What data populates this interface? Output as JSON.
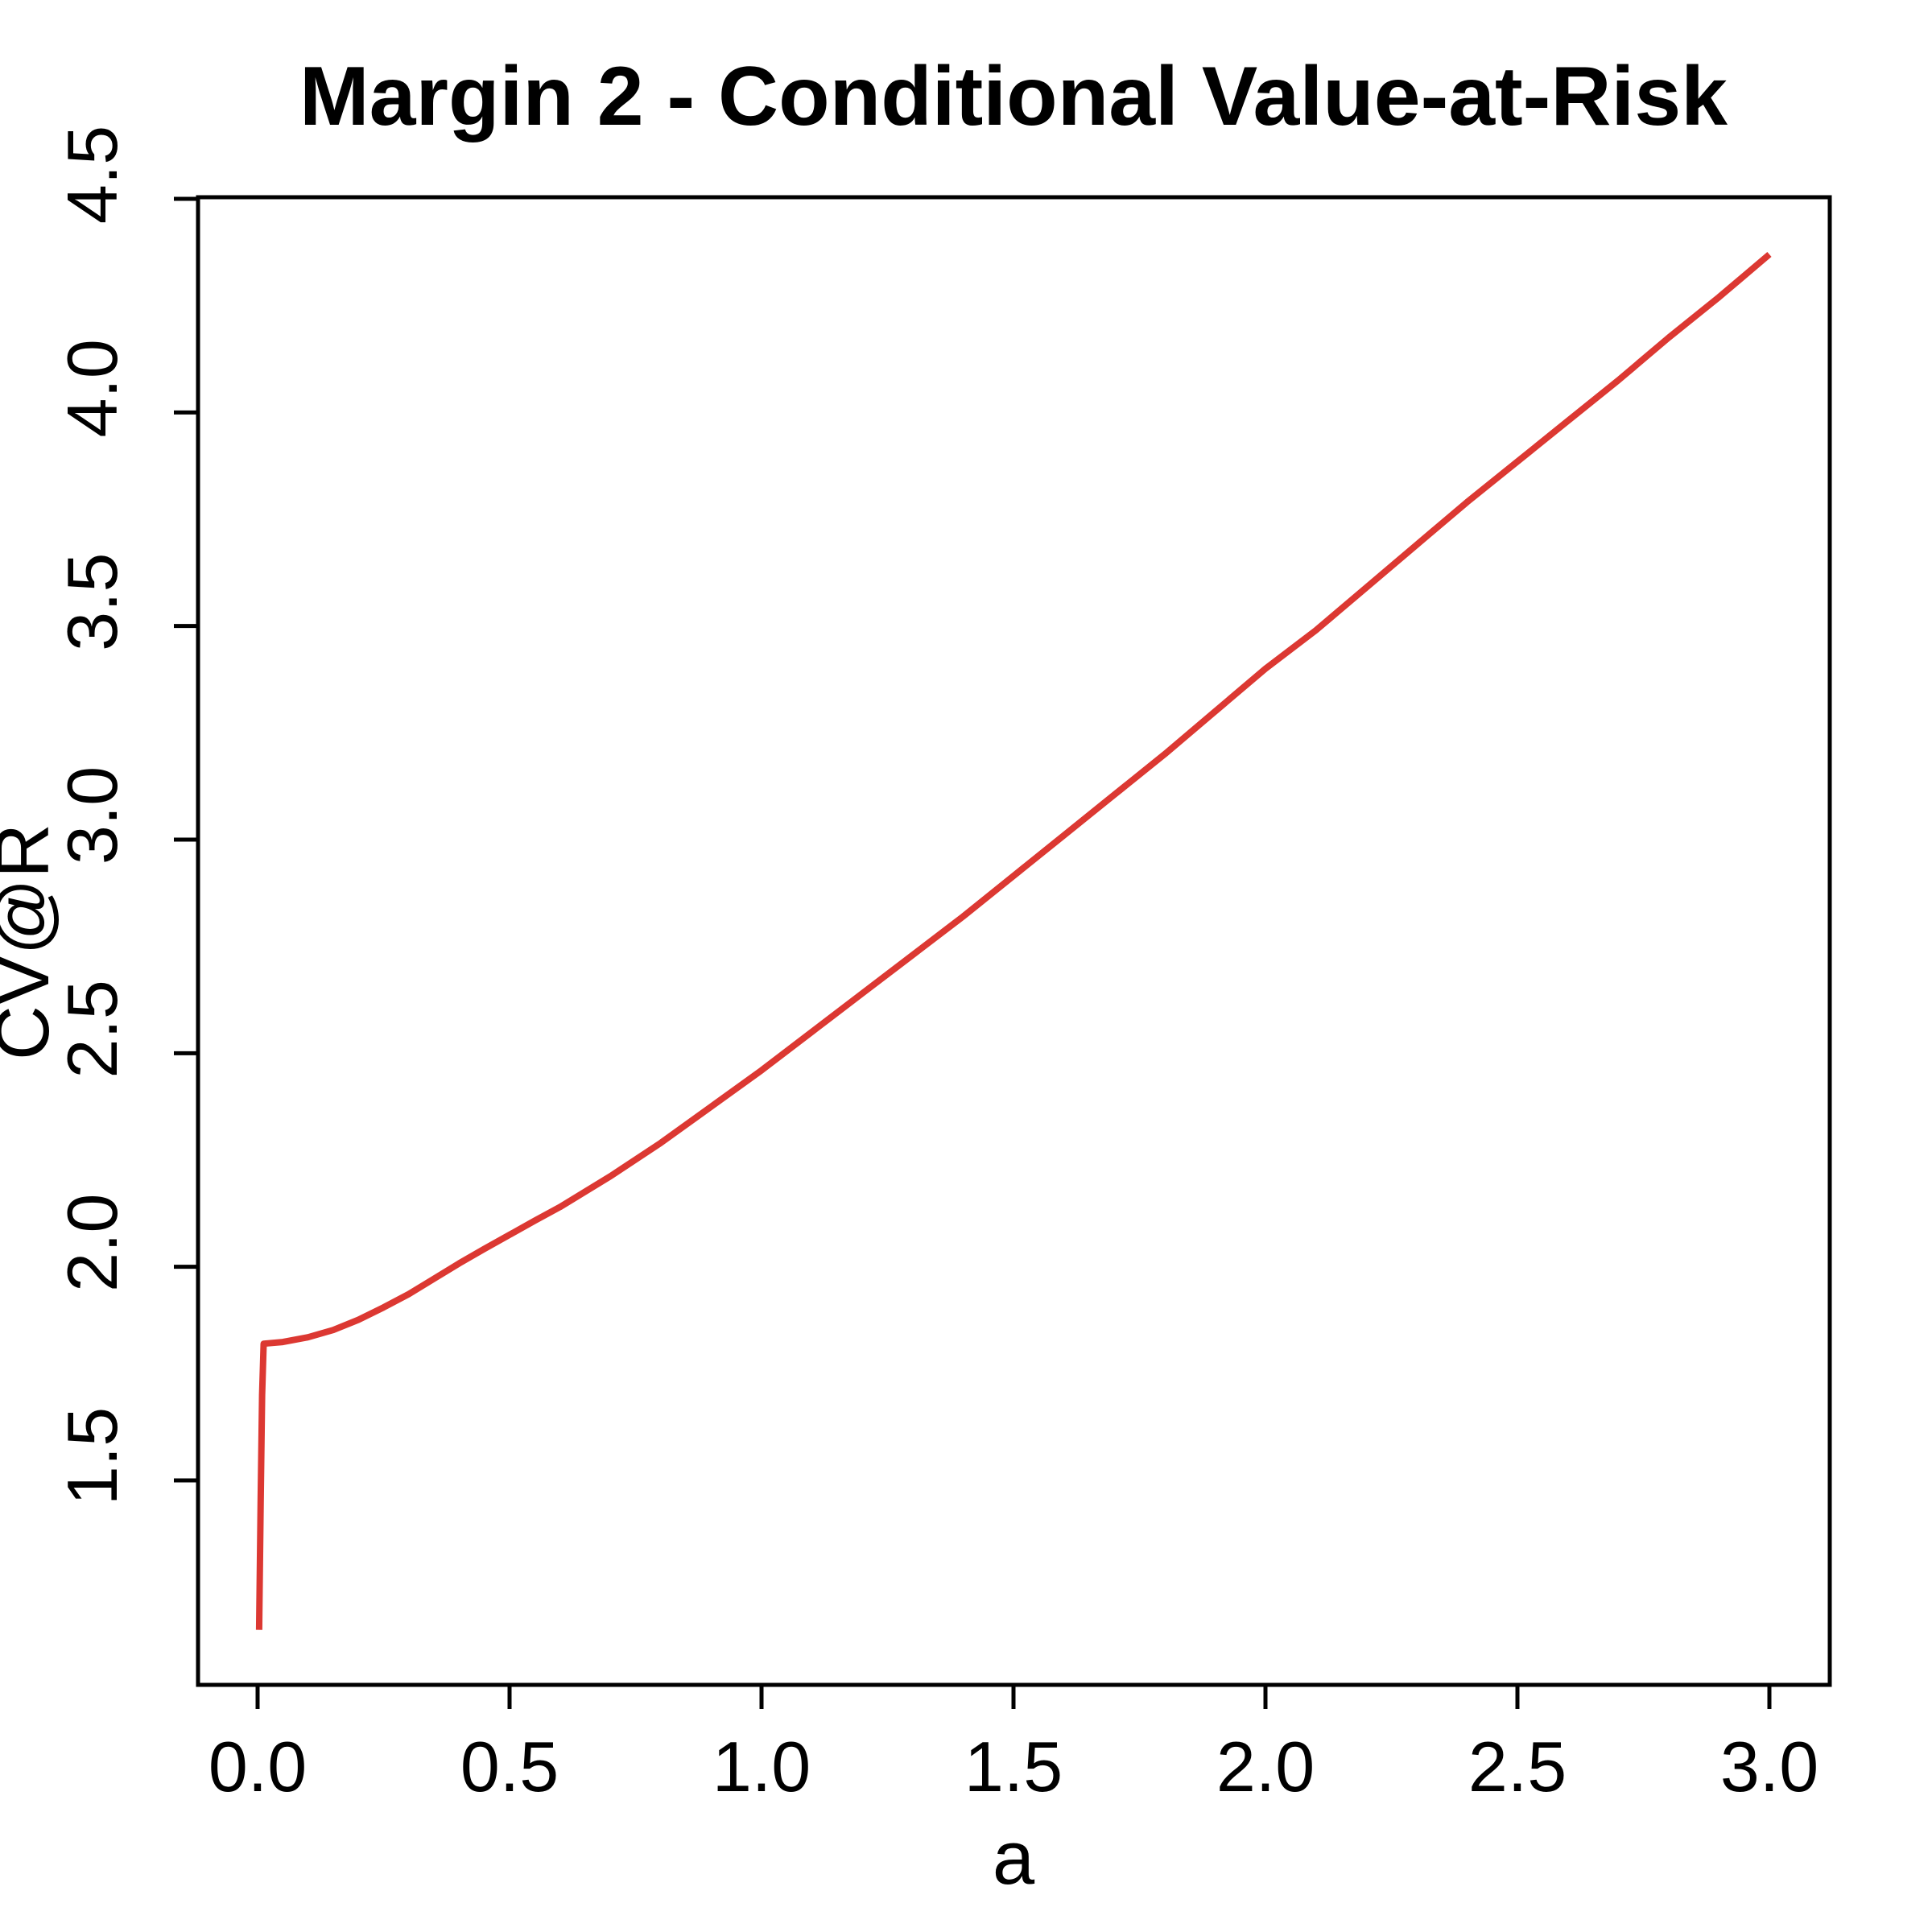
{
  "title": "Margin 2 - Conditional Value-at-Risk",
  "chart_data": {
    "type": "line",
    "title": "Margin 2 - Conditional Value-at-Risk",
    "xlabel": "a",
    "ylabel": "CV@R",
    "x_tick_labels": [
      "0.0",
      "0.5",
      "1.0",
      "1.5",
      "2.0",
      "2.5",
      "3.0"
    ],
    "x_tick_values": [
      0.0,
      0.5,
      1.0,
      1.5,
      2.0,
      2.5,
      3.0
    ],
    "y_tick_labels": [
      "1.5",
      "2.0",
      "2.5",
      "3.0",
      "3.5",
      "4.0",
      "4.5"
    ],
    "y_tick_values": [
      1.5,
      2.0,
      2.5,
      3.0,
      3.5,
      4.0,
      4.5
    ],
    "xlim": [
      -0.12,
      3.12
    ],
    "ylim": [
      1.02,
      4.51
    ],
    "grid": false,
    "legend": null,
    "line_color": "#DC3832",
    "axis_color": "#000000",
    "background_color": "#FFFFFF",
    "series": [
      {
        "name": "CV@R",
        "color": "#DC3832",
        "points": [
          [
            0.003,
            1.15
          ],
          [
            0.006,
            1.45
          ],
          [
            0.009,
            1.7
          ],
          [
            0.012,
            1.82
          ],
          [
            0.05,
            1.824
          ],
          [
            0.1,
            1.835
          ],
          [
            0.15,
            1.852
          ],
          [
            0.2,
            1.876
          ],
          [
            0.25,
            1.905
          ],
          [
            0.3,
            1.936
          ],
          [
            0.35,
            1.972
          ],
          [
            0.4,
            2.008
          ],
          [
            0.45,
            2.042
          ],
          [
            0.5,
            2.075
          ],
          [
            0.55,
            2.108
          ],
          [
            0.6,
            2.14
          ],
          [
            0.7,
            2.212
          ],
          [
            0.8,
            2.29
          ],
          [
            0.9,
            2.375
          ],
          [
            1.0,
            2.46
          ],
          [
            1.1,
            2.55
          ],
          [
            1.2,
            2.64
          ],
          [
            1.3,
            2.73
          ],
          [
            1.4,
            2.82
          ],
          [
            1.5,
            2.915
          ],
          [
            1.6,
            3.01
          ],
          [
            1.7,
            3.105
          ],
          [
            1.8,
            3.2
          ],
          [
            1.9,
            3.3
          ],
          [
            2.0,
            3.4
          ],
          [
            2.1,
            3.49
          ],
          [
            2.2,
            3.59
          ],
          [
            2.3,
            3.69
          ],
          [
            2.4,
            3.79
          ],
          [
            2.5,
            3.885
          ],
          [
            2.6,
            3.98
          ],
          [
            2.7,
            4.075
          ],
          [
            2.8,
            4.175
          ],
          [
            2.9,
            4.27
          ],
          [
            3.0,
            4.37
          ]
        ]
      }
    ]
  }
}
